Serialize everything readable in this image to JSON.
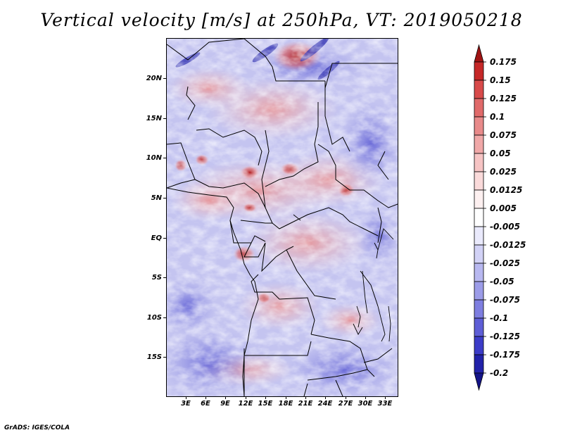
{
  "title": "Vertical velocity [m/s] at 250hPa, VT: 2019050218",
  "map": {
    "variable": "Vertical velocity",
    "units": "m/s",
    "level": "250hPa",
    "valid_time": "2019050218",
    "lat_labels": [
      "20N",
      "15N",
      "10N",
      "5N",
      "EQ",
      "5S",
      "10S",
      "15S"
    ],
    "lon_labels": [
      "3E",
      "6E",
      "9E",
      "12E",
      "15E",
      "18E",
      "21E",
      "24E",
      "27E",
      "30E",
      "33E"
    ]
  },
  "colorbar": {
    "levels": [
      "0.175",
      "0.15",
      "0.125",
      "0.1",
      "0.075",
      "0.05",
      "0.025",
      "0.0125",
      "0.005",
      "-0.005",
      "-0.0125",
      "-0.025",
      "-0.05",
      "-0.075",
      "-0.1",
      "-0.125",
      "-0.175",
      "-0.2"
    ],
    "colors": [
      "#a01414",
      "#c62828",
      "#d84a4a",
      "#e06a6a",
      "#e88a8a",
      "#f0a8a8",
      "#f6c4c4",
      "#fadada",
      "#fdf0f0",
      "#ffffff",
      "#eaeafc",
      "#d2d2f6",
      "#b8b8f0",
      "#9c9ce8",
      "#7e7ee0",
      "#5e5ed6",
      "#3c3cc8",
      "#2222aa",
      "#141488"
    ]
  },
  "credit": "GrADS: IGES/COLA"
}
